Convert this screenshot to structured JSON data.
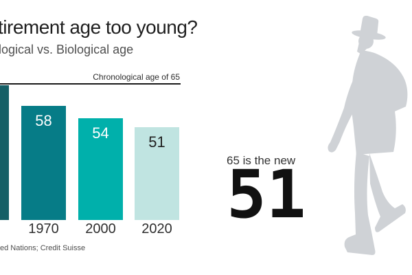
{
  "page": {
    "title": "tirement age too young?",
    "subtitle": "logical vs. Biological age",
    "source": "ed Nations; Credit Suisse"
  },
  "annotation": {
    "line1": "65 is the new",
    "big_number": "51"
  },
  "figure": {
    "name": "walking-man-with-fedora-silhouette",
    "color": "#cfd2d6"
  },
  "colors": {
    "reference_line": "#1a1a1a",
    "bar_darkest": "#155f66",
    "bar_dark_teal": "#067c87",
    "bar_turquoise": "#00b0ab",
    "bar_pale_aqua": "#c0e4e1"
  },
  "chart_data": {
    "type": "bar",
    "title": "tirement age too young?",
    "subtitle": "logical vs. Biological age",
    "categories": [
      "",
      "1970",
      "2000",
      "2020"
    ],
    "values": [
      65,
      58,
      54,
      51
    ],
    "bar_labels": [
      "",
      "58",
      "54",
      "51"
    ],
    "bar_colors": [
      "#155f66",
      "#067c87",
      "#00b0ab",
      "#c0e4e1"
    ],
    "label_colors": [
      "#ffffff",
      "#ffffff",
      "#ffffff",
      "#1f1f1f"
    ],
    "reference_line": {
      "label": "Chronological age of 65",
      "value": 65
    },
    "baseline_note": "first bar cropped at left edge, top touches reference line of 65",
    "grid": "off",
    "legend": "none"
  }
}
